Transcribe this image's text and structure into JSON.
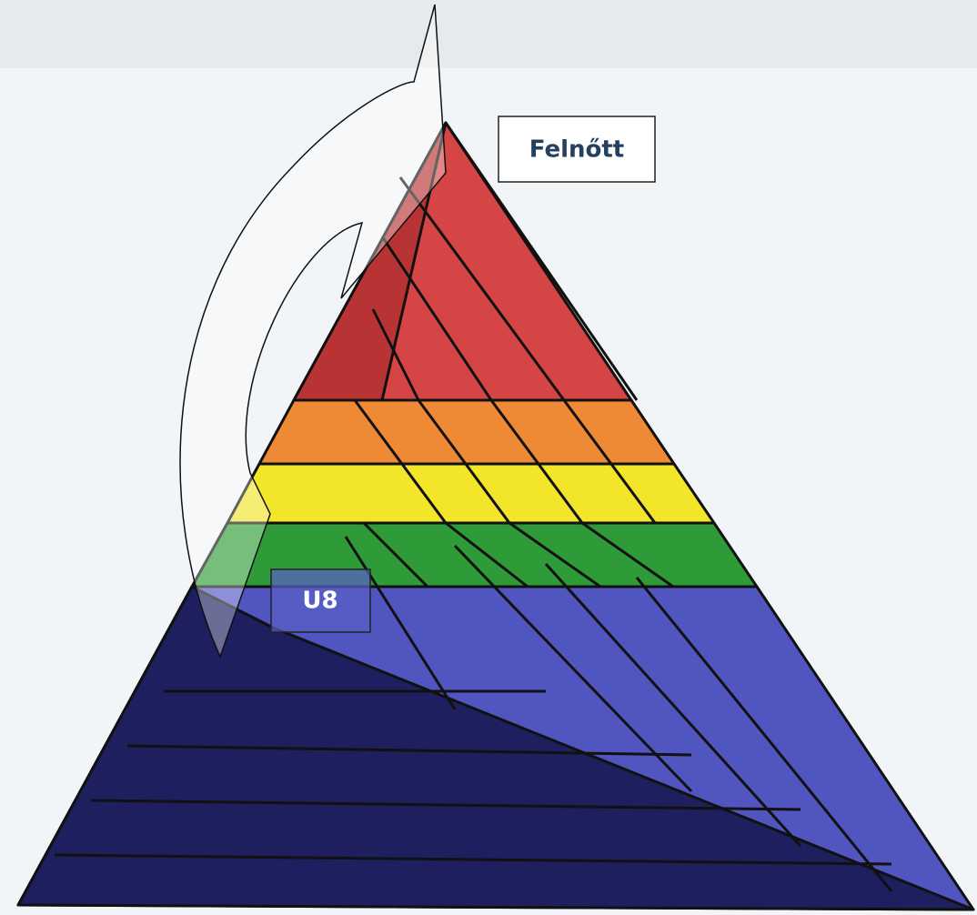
{
  "labels": {
    "top": "Felnőtt",
    "bottom": "U8"
  }
}
